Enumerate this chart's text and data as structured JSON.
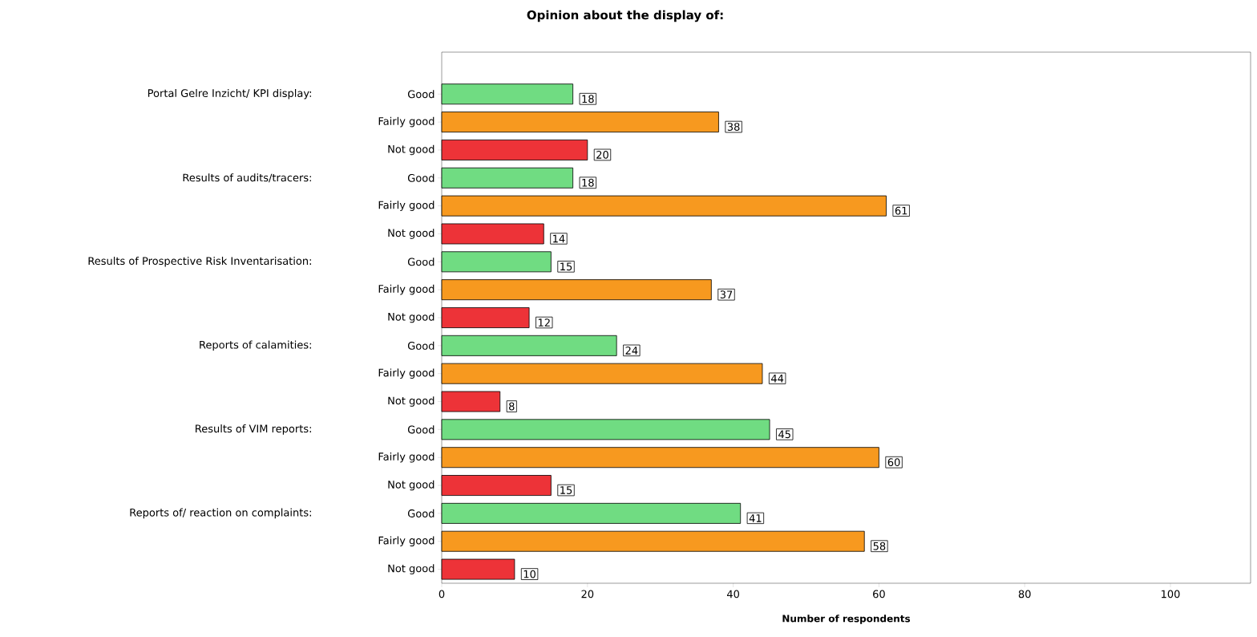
{
  "chart_data": {
    "type": "bar",
    "orientation": "horizontal",
    "title": "Opinion about the display of:",
    "xlabel": "Number of respondents",
    "categories": [
      "Good",
      "Fairly good",
      "Not good",
      "Good",
      "Fairly good",
      "Not good",
      "Good",
      "Fairly good",
      "Not good",
      "Good",
      "Fairly good",
      "Not good",
      "Good",
      "Fairly good",
      "Not good",
      "Good",
      "Fairly good",
      "Not good"
    ],
    "values": [
      18,
      38,
      20,
      18,
      61,
      14,
      15,
      37,
      12,
      24,
      44,
      8,
      45,
      60,
      15,
      41,
      58,
      10
    ],
    "colors": [
      "#70dc82",
      "#f7991f",
      "#ed3338",
      "#70dc82",
      "#f7991f",
      "#ed3338",
      "#70dc82",
      "#f7991f",
      "#ed3338",
      "#70dc82",
      "#f7991f",
      "#ed3338",
      "#70dc82",
      "#f7991f",
      "#ed3338",
      "#70dc82",
      "#f7991f",
      "#ed3338"
    ],
    "xlim": [
      0,
      111
    ],
    "xticks": [
      0,
      20,
      40,
      60,
      80,
      100
    ],
    "data_labels": true,
    "annotations": [
      "Portal Gelre Inzicht/ KPI display:",
      "Results of audits/tracers:",
      "Results of Prospective Risk Inventarisation:",
      "Reports of calamities:",
      "Results of VIM reports:",
      "Reports of/ reaction on complaints:"
    ]
  }
}
